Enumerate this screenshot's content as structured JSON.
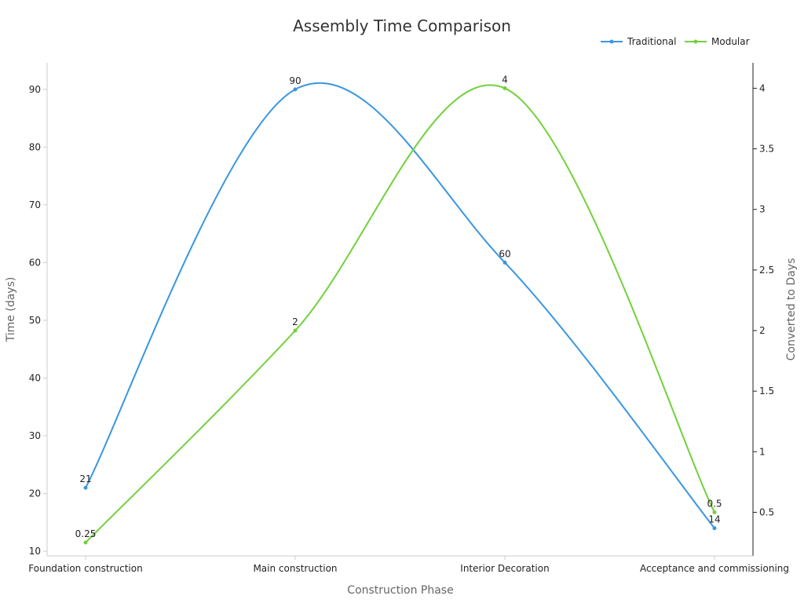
{
  "chart_data": {
    "type": "line",
    "title": "Assembly Time Comparison",
    "xlabel": "Construction Phase",
    "ylabel": "Time (days)",
    "ylabel_right": "Converted to Days",
    "categories": [
      "Foundation construction",
      "Main construction",
      "Interior Decoration",
      "Acceptance and commissioning"
    ],
    "ylim": [
      9.2,
      94.6
    ],
    "yticks": [
      10,
      20,
      30,
      40,
      50,
      60,
      70,
      80,
      90
    ],
    "ylim_right": [
      0.14,
      4.21
    ],
    "yticks_right": [
      0.5,
      1,
      1.5,
      2,
      2.5,
      3,
      3.5,
      4
    ],
    "legend_position": "top-right",
    "series": [
      {
        "name": "Traditional",
        "axis": "left",
        "color": "#3b96e0",
        "values": [
          21,
          90,
          60,
          14
        ],
        "labels": [
          "21",
          "90",
          "60",
          "14"
        ]
      },
      {
        "name": "Modular",
        "axis": "right",
        "color": "#72d13a",
        "values": [
          0.25,
          2,
          4,
          0.5
        ],
        "labels": [
          "0.25",
          "2",
          "4",
          "0.5"
        ]
      }
    ]
  }
}
